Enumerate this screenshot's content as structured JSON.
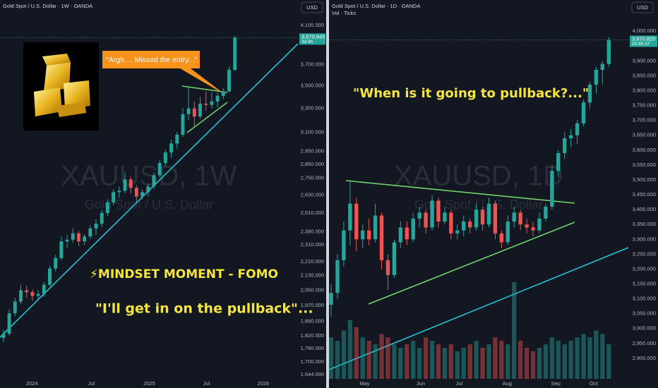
{
  "chart_data": [
    {
      "type": "candlestick",
      "title": "Gold Spot / U.S. Dollar · 1W · OANDA",
      "currency": "USD",
      "watermark": "XAUUSD, 1W",
      "watermark_subtitle": "Gold Spot / U.S. Dollar",
      "log_scale": true,
      "ylim": [
        1626,
        4382
      ],
      "yticks": [
        {
          "value": 4100,
          "label": "4,100.000"
        },
        {
          "value": 3700,
          "label": "3,700.000"
        },
        {
          "value": 3500,
          "label": "3,500.000"
        },
        {
          "value": 3300,
          "label": "3,300.000"
        },
        {
          "value": 3100,
          "label": "3,100.000"
        },
        {
          "value": 2950,
          "label": "2,950.000"
        },
        {
          "value": 2850,
          "label": "2,850.000"
        },
        {
          "value": 2750,
          "label": "2,750.000"
        },
        {
          "value": 2630,
          "label": "2,630.000"
        },
        {
          "value": 2510,
          "label": "2,510.000"
        },
        {
          "value": 2390,
          "label": "2,390.000"
        },
        {
          "value": 2310,
          "label": "2,310.000"
        },
        {
          "value": 2210,
          "label": "2,210.000"
        },
        {
          "value": 2130,
          "label": "2,130.000"
        },
        {
          "value": 2050,
          "label": "2,050.000"
        },
        {
          "value": 1970,
          "label": "1,970.000"
        },
        {
          "value": 1890,
          "label": "1,890.000"
        },
        {
          "value": 1820,
          "label": "1,820.000"
        },
        {
          "value": 1760,
          "label": "1,760.000"
        },
        {
          "value": 1700,
          "label": "1,700.000"
        },
        {
          "value": 1644,
          "label": "1,644.000"
        }
      ],
      "xlim": [
        -0.6,
        50.9
      ],
      "xticks": [
        {
          "value": 4.9,
          "label": "2024"
        },
        {
          "value": 15.2,
          "label": "Jul"
        },
        {
          "value": 25.2,
          "label": "2025"
        },
        {
          "value": 35.1,
          "label": "Jul"
        },
        {
          "value": 44.9,
          "label": "2026"
        }
      ],
      "last_price": {
        "value": 3970.845,
        "label": "3,970.845"
      },
      "countdown": "3d 9h",
      "up_color": "#26a69a",
      "down_color": "#ef5350",
      "ohlc": [
        [
          1810,
          1850,
          1790,
          1830
        ],
        [
          1830,
          1950,
          1820,
          1930
        ],
        [
          1930,
          2010,
          1915,
          1990
        ],
        [
          1990,
          2080,
          1975,
          2050
        ],
        [
          2050,
          2075,
          2010,
          2040
        ],
        [
          2040,
          2055,
          1995,
          2020
        ],
        [
          2020,
          2050,
          2000,
          2030
        ],
        [
          2030,
          2095,
          2015,
          2080
        ],
        [
          2080,
          2185,
          2070,
          2170
        ],
        [
          2170,
          2250,
          2155,
          2230
        ],
        [
          2230,
          2360,
          2220,
          2330
        ],
        [
          2330,
          2370,
          2290,
          2340
        ],
        [
          2340,
          2410,
          2320,
          2380
        ],
        [
          2380,
          2395,
          2300,
          2330
        ],
        [
          2330,
          2375,
          2310,
          2360
        ],
        [
          2360,
          2430,
          2345,
          2410
        ],
        [
          2410,
          2470,
          2370,
          2440
        ],
        [
          2440,
          2530,
          2420,
          2510
        ],
        [
          2510,
          2600,
          2490,
          2580
        ],
        [
          2580,
          2670,
          2560,
          2650
        ],
        [
          2650,
          2690,
          2610,
          2660
        ],
        [
          2660,
          2790,
          2640,
          2740
        ],
        [
          2740,
          2760,
          2640,
          2680
        ],
        [
          2680,
          2700,
          2580,
          2620
        ],
        [
          2620,
          2670,
          2600,
          2650
        ],
        [
          2650,
          2710,
          2620,
          2690
        ],
        [
          2690,
          2790,
          2670,
          2770
        ],
        [
          2770,
          2880,
          2750,
          2860
        ],
        [
          2860,
          2960,
          2840,
          2940
        ],
        [
          2940,
          3040,
          2900,
          3010
        ],
        [
          3010,
          3100,
          2970,
          3080
        ],
        [
          3080,
          3300,
          3060,
          3250
        ],
        [
          3250,
          3500,
          3200,
          3300
        ],
        [
          3300,
          3360,
          3150,
          3230
        ],
        [
          3230,
          3400,
          3210,
          3340
        ],
        [
          3340,
          3450,
          3280,
          3330
        ],
        [
          3330,
          3440,
          3300,
          3360
        ],
        [
          3360,
          3440,
          3310,
          3410
        ],
        [
          3410,
          3480,
          3380,
          3450
        ],
        [
          3450,
          3680,
          3440,
          3650
        ],
        [
          3650,
          3990,
          3640,
          3970
        ]
      ],
      "annotations": {
        "callout": "\"Argh.... Missed the entry...\"",
        "headline": "⚡MINDSET MOMENT - FOMO",
        "quote": "\"I'll get in on the pullback\"..."
      }
    },
    {
      "type": "candlestick",
      "title": "Gold Spot / U.S. Dollar · 1D · OANDA",
      "subtitle": "Vol · Ticks",
      "currency": "USD",
      "watermark": "XAUUSD, 1D",
      "watermark_subtitle": "Gold Spot / U.S. Dollar",
      "log_scale": false,
      "ylim": [
        2831,
        4104.8
      ],
      "yticks": [
        {
          "value": 4000,
          "label": "4,000.000"
        },
        {
          "value": 3900,
          "label": "3,900.000"
        },
        {
          "value": 3850,
          "label": "3,850.000"
        },
        {
          "value": 3800,
          "label": "3,800.000"
        },
        {
          "value": 3750,
          "label": "3,750.000"
        },
        {
          "value": 3700,
          "label": "3,700.000"
        },
        {
          "value": 3650,
          "label": "3,650.000"
        },
        {
          "value": 3600,
          "label": "3,600.000"
        },
        {
          "value": 3550,
          "label": "3,550.000"
        },
        {
          "value": 3500,
          "label": "3,500.000"
        },
        {
          "value": 3450,
          "label": "3,450.000"
        },
        {
          "value": 3400,
          "label": "3,400.000"
        },
        {
          "value": 3350,
          "label": "3,350.000"
        },
        {
          "value": 3300,
          "label": "3,300.000"
        },
        {
          "value": 3250,
          "label": "3,250.000"
        },
        {
          "value": 3200,
          "label": "3,200.000"
        },
        {
          "value": 3150,
          "label": "3,150.000"
        },
        {
          "value": 3100,
          "label": "3,100.000"
        },
        {
          "value": 3050,
          "label": "3,050.000"
        },
        {
          "value": 3000,
          "label": "3,000.000"
        },
        {
          "value": 2950,
          "label": "2,950.000"
        },
        {
          "value": 2900,
          "label": "2,900.000"
        }
      ],
      "xlim": [
        -0.34,
        47.1
      ],
      "xticks": [
        {
          "value": 5.3,
          "label": "May"
        },
        {
          "value": 14.2,
          "label": "Jun"
        },
        {
          "value": 20.3,
          "label": "Jul"
        },
        {
          "value": 27.9,
          "label": "Aug"
        },
        {
          "value": 35.6,
          "label": "Sep"
        },
        {
          "value": 41.6,
          "label": "Oct"
        }
      ],
      "last_price": {
        "value": 3970.82,
        "label": "3,970.820"
      },
      "countdown": "20:45:37",
      "up_color": "#26a69a",
      "down_color": "#ef5350",
      "ohlc": [
        [
          3080,
          3150,
          3040,
          3120
        ],
        [
          3120,
          3250,
          3100,
          3230
        ],
        [
          3230,
          3360,
          3210,
          3330
        ],
        [
          3330,
          3500,
          3280,
          3420
        ],
        [
          3420,
          3440,
          3260,
          3300
        ],
        [
          3300,
          3350,
          3270,
          3330
        ],
        [
          3330,
          3370,
          3280,
          3300
        ],
        [
          3300,
          3420,
          3290,
          3380
        ],
        [
          3380,
          3390,
          3200,
          3230
        ],
        [
          3230,
          3250,
          3130,
          3180
        ],
        [
          3180,
          3300,
          3170,
          3290
        ],
        [
          3290,
          3360,
          3270,
          3340
        ],
        [
          3340,
          3360,
          3280,
          3300
        ],
        [
          3300,
          3390,
          3290,
          3370
        ],
        [
          3370,
          3410,
          3340,
          3390
        ],
        [
          3390,
          3400,
          3320,
          3340
        ],
        [
          3340,
          3450,
          3330,
          3430
        ],
        [
          3430,
          3440,
          3340,
          3360
        ],
        [
          3360,
          3410,
          3350,
          3390
        ],
        [
          3390,
          3400,
          3300,
          3320
        ],
        [
          3320,
          3350,
          3300,
          3330
        ],
        [
          3330,
          3380,
          3310,
          3360
        ],
        [
          3360,
          3370,
          3320,
          3340
        ],
        [
          3340,
          3420,
          3330,
          3400
        ],
        [
          3400,
          3410,
          3330,
          3350
        ],
        [
          3350,
          3440,
          3340,
          3420
        ],
        [
          3420,
          3430,
          3300,
          3320
        ],
        [
          3320,
          3330,
          3270,
          3290
        ],
        [
          3290,
          3380,
          3280,
          3360
        ],
        [
          3360,
          3410,
          3340,
          3390
        ],
        [
          3390,
          3400,
          3330,
          3350
        ],
        [
          3350,
          3370,
          3320,
          3340
        ],
        [
          3340,
          3360,
          3310,
          3330
        ],
        [
          3330,
          3390,
          3320,
          3370
        ],
        [
          3370,
          3420,
          3360,
          3410
        ],
        [
          3410,
          3550,
          3400,
          3530
        ],
        [
          3530,
          3600,
          3510,
          3590
        ],
        [
          3590,
          3660,
          3570,
          3640
        ],
        [
          3640,
          3670,
          3610,
          3650
        ],
        [
          3650,
          3700,
          3620,
          3690
        ],
        [
          3690,
          3770,
          3680,
          3760
        ],
        [
          3760,
          3830,
          3740,
          3820
        ],
        [
          3820,
          3880,
          3790,
          3870
        ],
        [
          3870,
          3900,
          3820,
          3890
        ],
        [
          3890,
          3980,
          3880,
          3970
        ]
      ],
      "volume": [
        60,
        55,
        70,
        85,
        75,
        60,
        55,
        50,
        65,
        60,
        50,
        45,
        50,
        55,
        45,
        60,
        55,
        50,
        45,
        50,
        40,
        45,
        50,
        55,
        45,
        50,
        60,
        55,
        50,
        140,
        55,
        45,
        40,
        45,
        50,
        60,
        55,
        50,
        55,
        60,
        65,
        60,
        70,
        65,
        50
      ],
      "annotations": {
        "headline": "\"When is it going to pullback?...\""
      }
    }
  ]
}
